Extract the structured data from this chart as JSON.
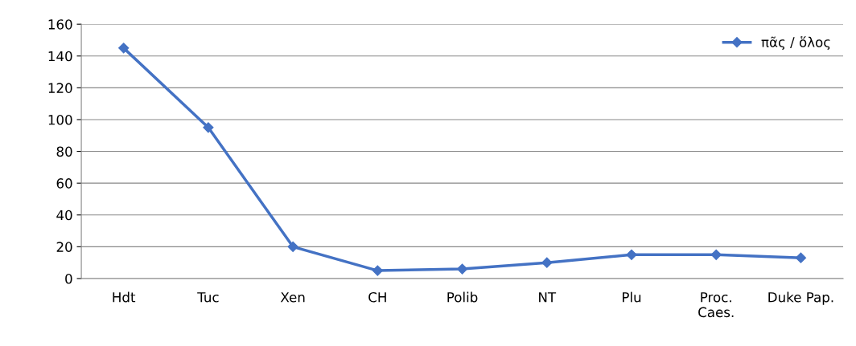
{
  "chart_data": {
    "type": "line",
    "categories": [
      "Hdt",
      "Tuc",
      "Xen",
      "CH",
      "Polib",
      "NT",
      "Plu",
      "Proc.\nCaes.",
      "Duke Pap."
    ],
    "series": [
      {
        "name": "πᾶς / ὅλος",
        "color": "#4472c4",
        "values": [
          145,
          95,
          20,
          5,
          6,
          10,
          15,
          15,
          13
        ]
      }
    ],
    "ylim": [
      0,
      160
    ],
    "yticks": [
      0,
      20,
      40,
      60,
      80,
      100,
      120,
      140,
      160
    ],
    "grid": "y",
    "legend": "top right",
    "marker": "diamond",
    "line_style": "solid"
  }
}
